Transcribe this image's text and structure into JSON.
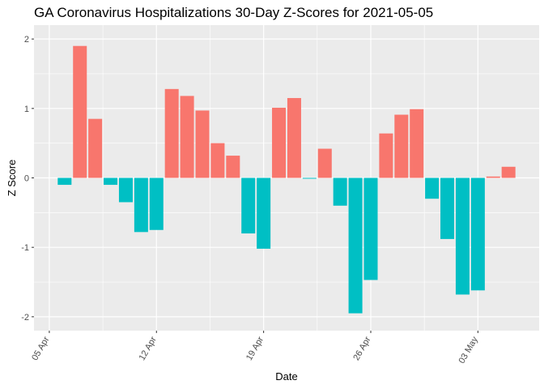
{
  "chart_data": {
    "type": "bar",
    "title": "GA Coronavirus Hospitalizations 30-Day Z-Scores for 2021-05-05",
    "xlabel": "Date",
    "ylabel": "Z Score",
    "ylim": [
      -2.2,
      2.2
    ],
    "y_ticks": [
      -2,
      -1,
      0,
      1,
      2
    ],
    "y_tick_labels": [
      "-2",
      "-1",
      "0",
      "1",
      "2"
    ],
    "x_range": [
      "2021-04-04",
      "2021-05-07"
    ],
    "x_ticks": [
      "2021-04-05",
      "2021-04-12",
      "2021-04-19",
      "2021-04-26",
      "2021-05-03"
    ],
    "x_tick_labels": [
      "05 Apr",
      "12 Apr",
      "19 Apr",
      "26 Apr",
      "03 May"
    ],
    "grid": true,
    "legend": "none",
    "colors": {
      "positive": "#F8766D",
      "negative": "#00BFC4",
      "panel_background": "#EBEBEB",
      "grid": "#FFFFFF"
    },
    "x": [
      "2021-04-06",
      "2021-04-07",
      "2021-04-08",
      "2021-04-09",
      "2021-04-10",
      "2021-04-11",
      "2021-04-12",
      "2021-04-13",
      "2021-04-14",
      "2021-04-15",
      "2021-04-16",
      "2021-04-17",
      "2021-04-18",
      "2021-04-19",
      "2021-04-20",
      "2021-04-21",
      "2021-04-22",
      "2021-04-23",
      "2021-04-24",
      "2021-04-25",
      "2021-04-26",
      "2021-04-27",
      "2021-04-28",
      "2021-04-29",
      "2021-04-30",
      "2021-05-01",
      "2021-05-02",
      "2021-05-03",
      "2021-05-04",
      "2021-05-05"
    ],
    "values": [
      -0.1,
      1.9,
      0.85,
      -0.1,
      -0.35,
      -0.78,
      -0.75,
      1.28,
      1.18,
      0.97,
      0.5,
      0.32,
      -0.8,
      -1.02,
      1.01,
      1.15,
      -0.01,
      0.42,
      -0.4,
      -1.95,
      -1.47,
      0.64,
      0.91,
      0.99,
      -0.3,
      -0.88,
      -1.68,
      -1.62,
      0.02,
      0.16
    ]
  }
}
